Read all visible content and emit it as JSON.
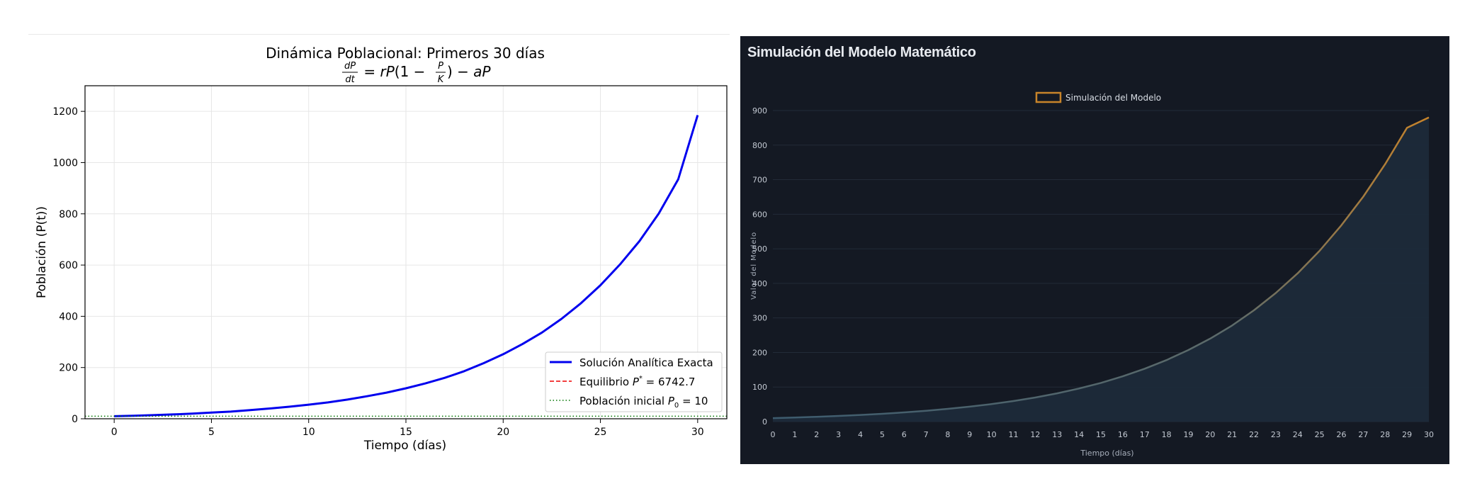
{
  "chart_data": [
    {
      "type": "line",
      "title": "Dinámica Poblacional: Primeros 30 días",
      "equation": {
        "lhs_num": "dP",
        "lhs_den": "dt",
        "eq": " = ",
        "rP": "rP",
        "open": "(1 − ",
        "frac_num": "P",
        "frac_den": "K",
        "close": ") − ",
        "aP": "aP"
      },
      "xlabel": "Tiempo (días)",
      "ylabel": "Población (P(t))",
      "xlim": [
        -1.5,
        31.5
      ],
      "ylim": [
        0,
        1300
      ],
      "xticks": [
        0,
        5,
        10,
        15,
        20,
        25,
        30
      ],
      "yticks": [
        0,
        200,
        400,
        600,
        800,
        1000,
        1200
      ],
      "grid": true,
      "legend_position": "lower-right",
      "series": [
        {
          "name": "Solución Analítica Exacta",
          "color": "#0000ee",
          "style": "solid",
          "x": [
            0,
            1,
            2,
            3,
            4,
            5,
            6,
            7,
            8,
            9,
            10,
            11,
            12,
            13,
            14,
            15,
            16,
            17,
            18,
            19,
            20,
            21,
            22,
            23,
            24,
            25,
            26,
            27,
            28,
            29,
            30
          ],
          "y": [
            10,
            12,
            14,
            17,
            20,
            24,
            28,
            34,
            40,
            47,
            55,
            64,
            75,
            88,
            102,
            119,
            138,
            160,
            186,
            217,
            252,
            292,
            337,
            390,
            451,
            521,
            602,
            693,
            801,
            935,
            1185
          ]
        },
        {
          "name": "Equilibrio",
          "name_math": "P",
          "name_sup": "*",
          "name_value": " = 6742.7",
          "color": "#ee0000",
          "style": "dashed",
          "value": 6742.7
        },
        {
          "name": "Población inicial",
          "name_math": "P",
          "name_sub": "0",
          "name_value": " = 10",
          "color": "#007700",
          "style": "dotted",
          "value": 10
        }
      ]
    },
    {
      "type": "area",
      "title": "Simulación del Modelo Matemático",
      "xlabel": "Tiempo (días)",
      "ylabel": "Valor del Modelo",
      "xlim": [
        0,
        30
      ],
      "ylim": [
        0,
        900
      ],
      "xticks": [
        0,
        1,
        2,
        3,
        4,
        5,
        6,
        7,
        8,
        9,
        10,
        11,
        12,
        13,
        14,
        15,
        16,
        17,
        18,
        19,
        20,
        21,
        22,
        23,
        24,
        25,
        26,
        27,
        28,
        29,
        30
      ],
      "yticks": [
        0,
        100,
        200,
        300,
        400,
        500,
        600,
        700,
        800,
        900
      ],
      "grid": true,
      "legend_position": "top-center",
      "series": [
        {
          "name": "Simulación del Modelo",
          "color": "#c8842a",
          "x": [
            0,
            1,
            2,
            3,
            4,
            5,
            6,
            7,
            8,
            9,
            10,
            11,
            12,
            13,
            14,
            15,
            16,
            17,
            18,
            19,
            20,
            21,
            22,
            23,
            24,
            25,
            26,
            27,
            28,
            29,
            30
          ],
          "y": [
            10,
            11.8,
            13.9,
            16.3,
            19.2,
            22.6,
            26.6,
            31.3,
            36.8,
            43.2,
            50.7,
            59.5,
            69.8,
            81.8,
            95.8,
            112,
            131,
            153,
            178,
            207,
            240,
            278,
            322,
            372,
            429,
            494,
            568,
            651,
            745,
            850,
            880
          ]
        }
      ]
    }
  ]
}
